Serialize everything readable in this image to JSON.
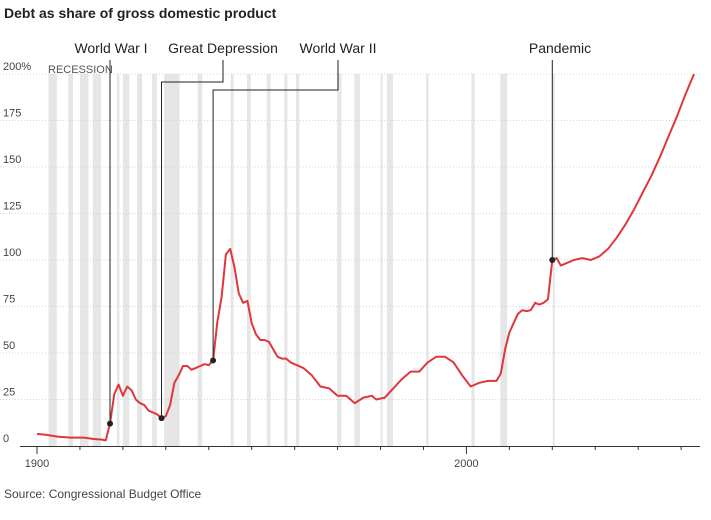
{
  "title": "Debt as share of gross domestic product",
  "source": "Source: Congressional Budget Office",
  "colors": {
    "line": "#e0363d",
    "recession": "#e6e6e6",
    "grid": "#d4d4d4",
    "axis": "#333333",
    "annotation": "#222222"
  },
  "chart_data": {
    "type": "line",
    "title": "Debt as share of gross domestic product",
    "xlim": [
      1900,
      2053
    ],
    "ylim": [
      0,
      200
    ],
    "y_ticks": [
      0,
      25,
      50,
      75,
      100,
      125,
      150,
      175,
      200
    ],
    "y_tick_labels": [
      "0",
      "25",
      "50",
      "75",
      "100",
      "125",
      "150",
      "175",
      "200%"
    ],
    "x_tick_labels": [
      {
        "x": 1900,
        "label": "1900"
      },
      {
        "x": 2000,
        "label": "2000"
      }
    ],
    "x_minor_ticks": [
      1910,
      1920,
      1930,
      1940,
      1950,
      1960,
      1970,
      1980,
      1990,
      2010,
      2020,
      2030,
      2040,
      2050
    ],
    "recession_label": "RECESSION",
    "recessions": [
      [
        1902.7,
        1904.6
      ],
      [
        1907.3,
        1908.4
      ],
      [
        1910,
        1912
      ],
      [
        1913,
        1914.9
      ],
      [
        1918.6,
        1919.2
      ],
      [
        1920,
        1921.5
      ],
      [
        1923.3,
        1924.5
      ],
      [
        1926.8,
        1927.9
      ],
      [
        1929.6,
        1933.2
      ],
      [
        1937.4,
        1938.5
      ],
      [
        1945.1,
        1945.8
      ],
      [
        1948.9,
        1949.8
      ],
      [
        1953.5,
        1954.4
      ],
      [
        1957.6,
        1958.3
      ],
      [
        1960.3,
        1961.1
      ],
      [
        1969.9,
        1970.9
      ],
      [
        1973.9,
        1975.2
      ],
      [
        1980,
        1980.5
      ],
      [
        1981.5,
        1982.9
      ],
      [
        1990.6,
        1991.2
      ],
      [
        2001.2,
        2001.9
      ],
      [
        2007.9,
        2009.5
      ],
      [
        2020.1,
        2020.4
      ]
    ],
    "series": [
      {
        "values": [
          [
            1900,
            6.5
          ],
          [
            1902,
            6
          ],
          [
            1905,
            5
          ],
          [
            1908,
            4.5
          ],
          [
            1911,
            4.5
          ],
          [
            1913,
            3.8
          ],
          [
            1914,
            3.6
          ],
          [
            1915,
            3.5
          ],
          [
            1916,
            3
          ],
          [
            1917,
            12
          ],
          [
            1918,
            28
          ],
          [
            1919,
            33
          ],
          [
            1920,
            27
          ],
          [
            1921,
            32
          ],
          [
            1922,
            30
          ],
          [
            1923,
            25
          ],
          [
            1924,
            23
          ],
          [
            1925,
            22
          ],
          [
            1926,
            19
          ],
          [
            1927,
            18
          ],
          [
            1928,
            17
          ],
          [
            1929,
            15
          ],
          [
            1930,
            16
          ],
          [
            1931,
            22
          ],
          [
            1932,
            34
          ],
          [
            1933,
            38
          ],
          [
            1934,
            43
          ],
          [
            1935,
            43
          ],
          [
            1936,
            41
          ],
          [
            1937,
            42
          ],
          [
            1938,
            43
          ],
          [
            1939,
            44
          ],
          [
            1940,
            43.5
          ],
          [
            1941,
            46
          ],
          [
            1942,
            67
          ],
          [
            1943,
            80
          ],
          [
            1944,
            103
          ],
          [
            1945,
            106
          ],
          [
            1946,
            96
          ],
          [
            1947,
            82
          ],
          [
            1948,
            77
          ],
          [
            1949,
            78
          ],
          [
            1950,
            66
          ],
          [
            1951,
            60
          ],
          [
            1952,
            57
          ],
          [
            1953,
            57
          ],
          [
            1954,
            56
          ],
          [
            1955,
            52
          ],
          [
            1956,
            48
          ],
          [
            1957,
            47
          ],
          [
            1958,
            47
          ],
          [
            1959,
            45
          ],
          [
            1960,
            44
          ],
          [
            1962,
            42
          ],
          [
            1964,
            38
          ],
          [
            1966,
            32
          ],
          [
            1968,
            31
          ],
          [
            1970,
            27
          ],
          [
            1972,
            27
          ],
          [
            1974,
            23
          ],
          [
            1976,
            26
          ],
          [
            1978,
            27
          ],
          [
            1979,
            25
          ],
          [
            1981,
            26
          ],
          [
            1983,
            31
          ],
          [
            1985,
            36
          ],
          [
            1987,
            40
          ],
          [
            1989,
            40
          ],
          [
            1991,
            45
          ],
          [
            1993,
            48
          ],
          [
            1995,
            48
          ],
          [
            1997,
            45
          ],
          [
            1999,
            38
          ],
          [
            2001,
            32
          ],
          [
            2003,
            34
          ],
          [
            2005,
            35
          ],
          [
            2007,
            35
          ],
          [
            2008,
            39
          ],
          [
            2009,
            52
          ],
          [
            2010,
            61
          ],
          [
            2011,
            66
          ],
          [
            2012,
            71
          ],
          [
            2013,
            73
          ],
          [
            2014,
            72.5
          ],
          [
            2015,
            73
          ],
          [
            2016,
            77
          ],
          [
            2017,
            76
          ],
          [
            2018,
            77
          ],
          [
            2019,
            79
          ],
          [
            2020,
            100
          ],
          [
            2021,
            101
          ],
          [
            2022,
            97
          ],
          [
            2023,
            98
          ],
          [
            2025,
            100
          ],
          [
            2027,
            101
          ],
          [
            2029,
            100
          ],
          [
            2031,
            102
          ],
          [
            2033,
            106
          ],
          [
            2035,
            112
          ],
          [
            2037,
            119
          ],
          [
            2039,
            127
          ],
          [
            2041,
            136
          ],
          [
            2043,
            145
          ],
          [
            2045,
            155
          ],
          [
            2047,
            166
          ],
          [
            2049,
            177
          ],
          [
            2051,
            189
          ],
          [
            2053,
            200
          ]
        ]
      }
    ],
    "annotations": [
      {
        "label": "World War I",
        "x": 1917,
        "y": 12
      },
      {
        "label": "Great Depression",
        "x": 1929,
        "y": 15
      },
      {
        "label": "World War II",
        "x": 1941,
        "y": 46
      },
      {
        "label": "Pandemic",
        "x": 2020,
        "y": 100
      }
    ]
  }
}
